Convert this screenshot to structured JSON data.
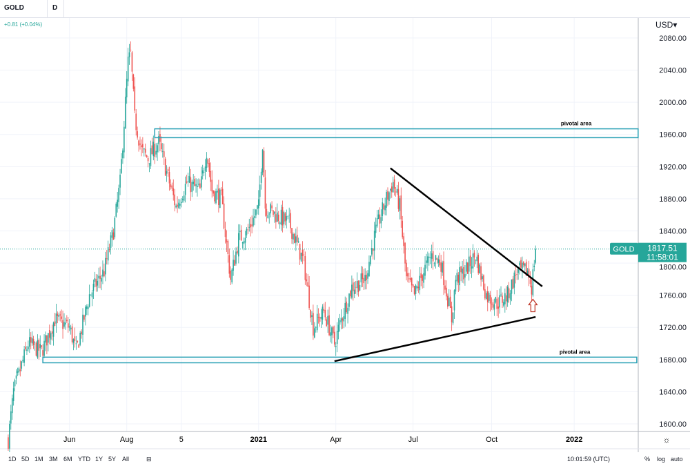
{
  "header": {
    "symbol": "GOLD",
    "interval": "D",
    "change": "+0.81 (+0.04%)",
    "currency": "USD"
  },
  "price_badge": {
    "symbol": "GOLD",
    "price": "1817.51",
    "countdown": "11:58:01",
    "color": "#26a69a"
  },
  "bottom": {
    "ranges": [
      "1D",
      "5D",
      "1M",
      "3M",
      "6M",
      "YTD",
      "1Y",
      "5Y",
      "All"
    ],
    "time": "10:01:59 (UTC)",
    "pct": "%",
    "log": "log",
    "auto": "auto"
  },
  "chart_data": {
    "type": "candlestick",
    "title": "GOLD, D",
    "ylim": [
      1590,
      2100
    ],
    "yticks": [
      1600,
      1640,
      1680,
      1720,
      1760,
      1800,
      1840,
      1880,
      1920,
      1960,
      2000,
      2040,
      2080
    ],
    "xticks": [
      {
        "label": "Jun",
        "day": 47,
        "bold": false
      },
      {
        "label": "Aug",
        "day": 90,
        "bold": false
      },
      {
        "label": "5",
        "day": 131,
        "bold": false
      },
      {
        "label": "2021",
        "day": 189,
        "bold": true
      },
      {
        "label": "Apr",
        "day": 247,
        "bold": false
      },
      {
        "label": "Jul",
        "day": 305,
        "bold": false
      },
      {
        "label": "Oct",
        "day": 364,
        "bold": false
      },
      {
        "label": "2022",
        "day": 426,
        "bold": true
      }
    ],
    "price_path": [
      [
        1,
        1580
      ],
      [
        5,
        1640
      ],
      [
        16,
        1700
      ],
      [
        26,
        1690
      ],
      [
        36,
        1730
      ],
      [
        47,
        1720
      ],
      [
        52,
        1690
      ],
      [
        62,
        1760
      ],
      [
        73,
        1790
      ],
      [
        80,
        1840
      ],
      [
        85,
        1900
      ],
      [
        91,
        2050
      ],
      [
        93,
        2060
      ],
      [
        96,
        1980
      ],
      [
        101,
        1940
      ],
      [
        106,
        1930
      ],
      [
        114,
        1950
      ],
      [
        122,
        1900
      ],
      [
        127,
        1870
      ],
      [
        135,
        1900
      ],
      [
        145,
        1890
      ],
      [
        150,
        1940
      ],
      [
        154,
        1890
      ],
      [
        161,
        1880
      ],
      [
        168,
        1780
      ],
      [
        174,
        1830
      ],
      [
        181,
        1840
      ],
      [
        189,
        1870
      ],
      [
        192,
        1950
      ],
      [
        194,
        1870
      ],
      [
        202,
        1860
      ],
      [
        212,
        1850
      ],
      [
        223,
        1800
      ],
      [
        230,
        1720
      ],
      [
        238,
        1740
      ],
      [
        246,
        1700
      ],
      [
        251,
        1730
      ],
      [
        259,
        1770
      ],
      [
        269,
        1780
      ],
      [
        277,
        1840
      ],
      [
        285,
        1880
      ],
      [
        290,
        1900
      ],
      [
        295,
        1870
      ],
      [
        300,
        1780
      ],
      [
        306,
        1760
      ],
      [
        313,
        1790
      ],
      [
        319,
        1810
      ],
      [
        326,
        1800
      ],
      [
        334,
        1730
      ],
      [
        337,
        1780
      ],
      [
        344,
        1790
      ],
      [
        352,
        1810
      ],
      [
        360,
        1760
      ],
      [
        368,
        1750
      ],
      [
        376,
        1760
      ],
      [
        383,
        1790
      ],
      [
        391,
        1790
      ],
      [
        394,
        1770
      ],
      [
        397,
        1817.51
      ]
    ],
    "last_price": 1817.51,
    "annotations": [
      {
        "type": "box",
        "label": "pivotal area",
        "day_from": 111,
        "day_to": 474,
        "price_from": 1956,
        "price_to": 1967
      },
      {
        "type": "box",
        "label": "pivotal area",
        "day_from": 27,
        "day_to": 473,
        "price_from": 1676,
        "price_to": 1683
      },
      {
        "type": "trendline",
        "from": [
          288,
          1918
        ],
        "to": [
          402,
          1771
        ]
      },
      {
        "type": "trendline",
        "from": [
          246,
          1678
        ],
        "to": [
          397,
          1733
        ]
      },
      {
        "type": "arrow",
        "direction": "up",
        "day": 395,
        "price": 1755,
        "color": "#c0392b"
      }
    ],
    "colors": {
      "up": "#26a69a",
      "down": "#ef5350"
    }
  }
}
